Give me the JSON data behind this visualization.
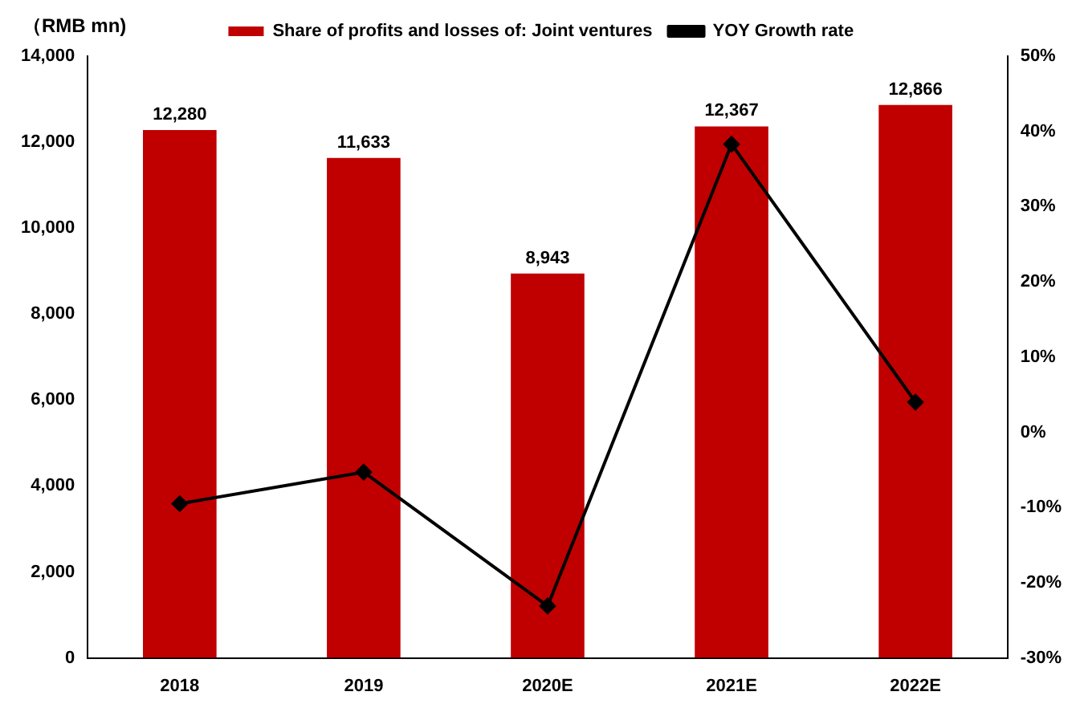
{
  "chart_data": {
    "type": "bar",
    "ylabel": "（RMB mn)",
    "categories": [
      "2018",
      "2019",
      "2020E",
      "2021E",
      "2022E"
    ],
    "series": [
      {
        "name": "Share of profits and losses of: Joint ventures",
        "color": "#c00000",
        "values": [
          12280,
          11633,
          8943,
          12367,
          12866
        ],
        "value_labels": [
          "12,280",
          "11,633",
          "8,943",
          "12,367",
          "12,866"
        ]
      },
      {
        "name": "YOY Growth rate",
        "type": "line",
        "axis": "y2",
        "color": "#000000",
        "values": [
          -9.5,
          -5.3,
          -23.1,
          38.3,
          4.0
        ]
      }
    ],
    "ylim": [
      0,
      14000
    ],
    "yticks": [
      {
        "value": 0,
        "label": "0"
      },
      {
        "value": 2000,
        "label": "2,000"
      },
      {
        "value": 4000,
        "label": "4,000"
      },
      {
        "value": 6000,
        "label": "6,000"
      },
      {
        "value": 8000,
        "label": "8,000"
      },
      {
        "value": 10000,
        "label": "10,000"
      },
      {
        "value": 12000,
        "label": "12,000"
      },
      {
        "value": 14000,
        "label": "14,000"
      }
    ],
    "y2lim": [
      -30,
      50
    ],
    "y2ticks": [
      {
        "value": -30,
        "label": "-30%"
      },
      {
        "value": -20,
        "label": "-20%"
      },
      {
        "value": -10,
        "label": "-10%"
      },
      {
        "value": 0,
        "label": "0%"
      },
      {
        "value": 10,
        "label": "10%"
      },
      {
        "value": 20,
        "label": "20%"
      },
      {
        "value": 30,
        "label": "30%"
      },
      {
        "value": 40,
        "label": "40%"
      },
      {
        "value": 50,
        "label": "50%"
      }
    ],
    "grid": false,
    "legend": "top",
    "marker": "diamond",
    "line_style": "solid"
  }
}
